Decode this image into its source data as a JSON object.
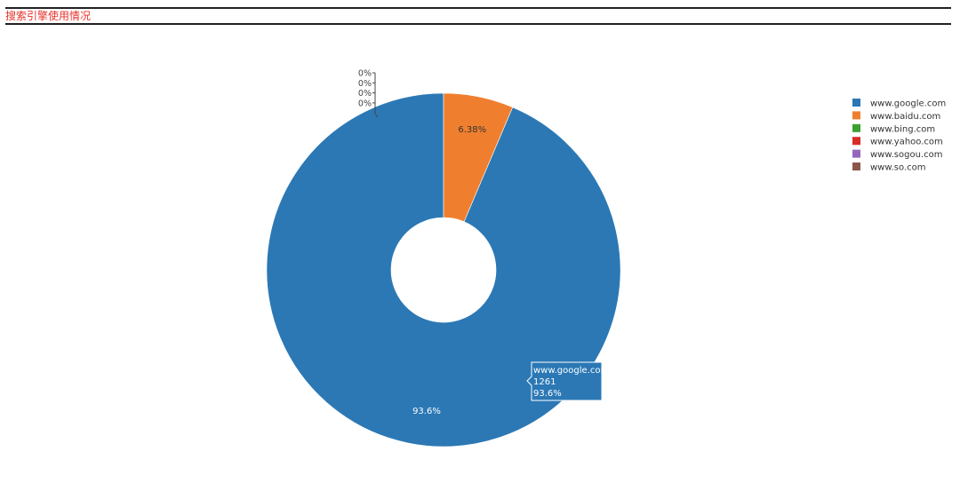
{
  "panel": {
    "title": "搜索引擎使用情况"
  },
  "chart_data": {
    "type": "pie",
    "hole": true,
    "legend_position": "top-right",
    "labels": [
      "www.google.com",
      "www.baidu.com",
      "www.bing.com",
      "www.yahoo.com",
      "www.sogou.com",
      "www.so.com"
    ],
    "values": [
      1261,
      86,
      0,
      0,
      0,
      0
    ],
    "percent_labels": [
      "93.6%",
      "6.38%",
      "0%",
      "0%",
      "0%",
      "0%"
    ],
    "colors": [
      "#2b78b5",
      "#ef7f2e",
      "#3aa02f",
      "#d62d26",
      "#9467bd",
      "#8c564b"
    ]
  },
  "tooltip": {
    "label": "www.google.com",
    "value": "1261",
    "percent": "93.6%"
  }
}
